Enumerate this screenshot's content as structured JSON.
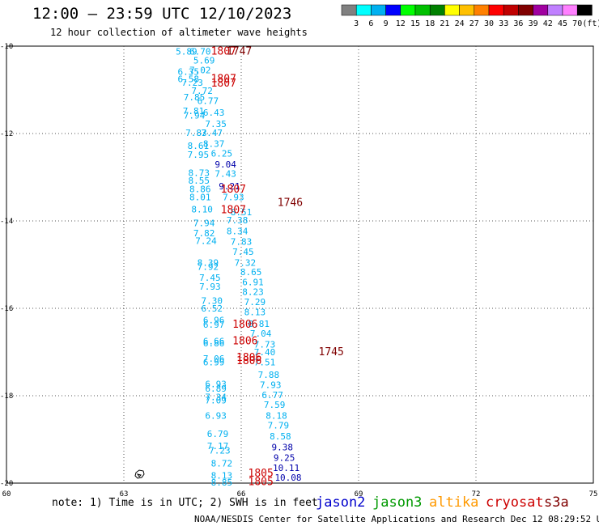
{
  "title": "12:00 — 23:59 UTC 12/10/2023",
  "subtitle": "12 hour collection of altimeter wave heights",
  "scale": {
    "labels": [
      "3",
      "6",
      "9",
      "12",
      "15",
      "18",
      "21",
      "24",
      "27",
      "30",
      "33",
      "36",
      "39",
      "42",
      "45",
      "70",
      "(ft)"
    ],
    "colors": [
      "#808080",
      "#00ffff",
      "#00b0f0",
      "#0000ff",
      "#00ff00",
      "#00c000",
      "#008000",
      "#ffff00",
      "#ffc000",
      "#ff8000",
      "#ff0000",
      "#c00000",
      "#800000",
      "#a000a0",
      "#c080ff",
      "#ff80ff",
      "#000000"
    ]
  },
  "note": "note: 1) Time is in UTC; 2) SWH is in feet",
  "satellites": [
    {
      "name": "jason2",
      "color": "#0000cc"
    },
    {
      "name": "jason3",
      "color": "#009900"
    },
    {
      "name": "altika",
      "color": "#ff9900"
    },
    {
      "name": "cryosat",
      "color": "#cc0000"
    },
    {
      "name": "s3a",
      "color": "#800000"
    }
  ],
  "footer": "NOAA/NESDIS Center for Satellite Applications and Research    Dec 12 08:29:52 UTC 2023",
  "chart_data": {
    "type": "scatter",
    "x_ticks": [
      "60",
      "63",
      "66",
      "69",
      "72",
      "75"
    ],
    "y_ticks": [
      "-10",
      "-12",
      "-14",
      "-16",
      "-18",
      "-20"
    ],
    "xlim": [
      60,
      75
    ],
    "ylim": [
      -20,
      -10
    ],
    "grid": true,
    "points": [
      {
        "x": 64.6,
        "y": -10.12,
        "v": "5.89",
        "c": "#00b0f0"
      },
      {
        "x": 64.95,
        "y": -10.12,
        "v": "6.70",
        "c": "#00b0f0"
      },
      {
        "x": 65.05,
        "y": -10.32,
        "v": "5.69",
        "c": "#00b0f0"
      },
      {
        "x": 64.65,
        "y": -10.58,
        "v": "6.35",
        "c": "#00b0f0"
      },
      {
        "x": 64.95,
        "y": -10.55,
        "v": "7.02",
        "c": "#00b0f0"
      },
      {
        "x": 64.65,
        "y": -10.75,
        "v": "6.58",
        "c": "#00b0f0"
      },
      {
        "x": 64.75,
        "y": -10.83,
        "v": "7.23",
        "c": "#00b0f0"
      },
      {
        "x": 65.0,
        "y": -11.02,
        "v": "7.72",
        "c": "#00b0f0"
      },
      {
        "x": 64.8,
        "y": -11.17,
        "v": "7.85",
        "c": "#00b0f0"
      },
      {
        "x": 65.15,
        "y": -11.25,
        "v": "6.77",
        "c": "#00b0f0"
      },
      {
        "x": 64.78,
        "y": -11.48,
        "v": "7.81",
        "c": "#00b0f0"
      },
      {
        "x": 64.8,
        "y": -11.58,
        "v": "7.94",
        "c": "#00b0f0"
      },
      {
        "x": 65.3,
        "y": -11.52,
        "v": "6.43",
        "c": "#00b0f0"
      },
      {
        "x": 65.35,
        "y": -11.78,
        "v": "7.35",
        "c": "#00b0f0"
      },
      {
        "x": 64.85,
        "y": -11.98,
        "v": "7.83",
        "c": "#00b0f0"
      },
      {
        "x": 65.25,
        "y": -11.98,
        "v": "7.47",
        "c": "#00b0f0"
      },
      {
        "x": 64.9,
        "y": -12.28,
        "v": "8.61",
        "c": "#00b0f0"
      },
      {
        "x": 65.3,
        "y": -12.23,
        "v": "8.37",
        "c": "#00b0f0"
      },
      {
        "x": 64.9,
        "y": -12.48,
        "v": "7.95",
        "c": "#00b0f0"
      },
      {
        "x": 65.5,
        "y": -12.45,
        "v": "6.25",
        "c": "#00b0f0"
      },
      {
        "x": 65.6,
        "y": -12.7,
        "v": "9.04",
        "c": "#0000aa"
      },
      {
        "x": 64.92,
        "y": -12.9,
        "v": "8.73",
        "c": "#00b0f0"
      },
      {
        "x": 65.6,
        "y": -12.92,
        "v": "7.43",
        "c": "#00b0f0"
      },
      {
        "x": 64.92,
        "y": -13.07,
        "v": "8.55",
        "c": "#00b0f0"
      },
      {
        "x": 64.95,
        "y": -13.27,
        "v": "8.86",
        "c": "#00b0f0"
      },
      {
        "x": 65.7,
        "y": -13.2,
        "v": "9.21",
        "c": "#0000aa"
      },
      {
        "x": 64.95,
        "y": -13.45,
        "v": "8.01",
        "c": "#00b0f0"
      },
      {
        "x": 65.8,
        "y": -13.45,
        "v": "7.93",
        "c": "#00b0f0"
      },
      {
        "x": 65.0,
        "y": -13.73,
        "v": "8.10",
        "c": "#00b0f0"
      },
      {
        "x": 66.0,
        "y": -13.8,
        "v": "8.51",
        "c": "#00b0f0"
      },
      {
        "x": 65.9,
        "y": -13.98,
        "v": "7.38",
        "c": "#00b0f0"
      },
      {
        "x": 65.05,
        "y": -14.05,
        "v": "7.94",
        "c": "#00b0f0"
      },
      {
        "x": 65.9,
        "y": -14.23,
        "v": "8.34",
        "c": "#00b0f0"
      },
      {
        "x": 65.05,
        "y": -14.28,
        "v": "7.82",
        "c": "#00b0f0"
      },
      {
        "x": 65.1,
        "y": -14.45,
        "v": "7.24",
        "c": "#00b0f0"
      },
      {
        "x": 66.0,
        "y": -14.47,
        "v": "7.83",
        "c": "#00b0f0"
      },
      {
        "x": 66.05,
        "y": -14.7,
        "v": "7.45",
        "c": "#00b0f0"
      },
      {
        "x": 65.15,
        "y": -14.95,
        "v": "8.39",
        "c": "#00b0f0"
      },
      {
        "x": 66.1,
        "y": -14.95,
        "v": "7.32",
        "c": "#00b0f0"
      },
      {
        "x": 65.15,
        "y": -15.05,
        "v": "7.92",
        "c": "#00b0f0"
      },
      {
        "x": 66.25,
        "y": -15.17,
        "v": "8.65",
        "c": "#00b0f0"
      },
      {
        "x": 65.2,
        "y": -15.3,
        "v": "7.45",
        "c": "#00b0f0"
      },
      {
        "x": 66.3,
        "y": -15.4,
        "v": "6.91",
        "c": "#00b0f0"
      },
      {
        "x": 65.2,
        "y": -15.5,
        "v": "7.93",
        "c": "#00b0f0"
      },
      {
        "x": 66.3,
        "y": -15.62,
        "v": "8.23",
        "c": "#00b0f0"
      },
      {
        "x": 65.25,
        "y": -15.82,
        "v": "7.30",
        "c": "#00b0f0"
      },
      {
        "x": 66.35,
        "y": -15.85,
        "v": "7.29",
        "c": "#00b0f0"
      },
      {
        "x": 65.25,
        "y": -16.0,
        "v": "6.52",
        "c": "#00b0f0"
      },
      {
        "x": 66.35,
        "y": -16.08,
        "v": "8.13",
        "c": "#00b0f0"
      },
      {
        "x": 65.3,
        "y": -16.27,
        "v": "6.96",
        "c": "#00b0f0"
      },
      {
        "x": 65.3,
        "y": -16.37,
        "v": "6.97",
        "c": "#00b0f0"
      },
      {
        "x": 66.45,
        "y": -16.35,
        "v": "8.81",
        "c": "#00b0f0"
      },
      {
        "x": 66.5,
        "y": -16.57,
        "v": "7.04",
        "c": "#00b0f0"
      },
      {
        "x": 65.3,
        "y": -16.75,
        "v": "6.66",
        "c": "#00b0f0"
      },
      {
        "x": 65.3,
        "y": -16.8,
        "v": "6.86",
        "c": "#00b0f0"
      },
      {
        "x": 66.6,
        "y": -16.82,
        "v": "7.73",
        "c": "#00b0f0"
      },
      {
        "x": 66.6,
        "y": -17.0,
        "v": "7.40",
        "c": "#00b0f0"
      },
      {
        "x": 65.3,
        "y": -17.15,
        "v": "7.06",
        "c": "#00b0f0"
      },
      {
        "x": 65.3,
        "y": -17.23,
        "v": "6.99",
        "c": "#00b0f0"
      },
      {
        "x": 66.6,
        "y": -17.23,
        "v": "7.51",
        "c": "#00b0f0"
      },
      {
        "x": 66.7,
        "y": -17.52,
        "v": "7.88",
        "c": "#00b0f0"
      },
      {
        "x": 65.35,
        "y": -17.73,
        "v": "6.93",
        "c": "#00b0f0"
      },
      {
        "x": 66.75,
        "y": -17.75,
        "v": "7.93",
        "c": "#00b0f0"
      },
      {
        "x": 65.35,
        "y": -17.83,
        "v": "6.89",
        "c": "#00b0f0"
      },
      {
        "x": 66.8,
        "y": -17.98,
        "v": "6.77",
        "c": "#00b0f0"
      },
      {
        "x": 65.35,
        "y": -18.03,
        "v": "7.34",
        "c": "#00b0f0"
      },
      {
        "x": 65.35,
        "y": -18.1,
        "v": "7.09",
        "c": "#00b0f0"
      },
      {
        "x": 66.85,
        "y": -18.2,
        "v": "7.59",
        "c": "#00b0f0"
      },
      {
        "x": 65.35,
        "y": -18.45,
        "v": "6.93",
        "c": "#00b0f0"
      },
      {
        "x": 66.9,
        "y": -18.45,
        "v": "8.18",
        "c": "#00b0f0"
      },
      {
        "x": 66.95,
        "y": -18.68,
        "v": "7.79",
        "c": "#00b0f0"
      },
      {
        "x": 65.4,
        "y": -18.87,
        "v": "6.79",
        "c": "#00b0f0"
      },
      {
        "x": 67.0,
        "y": -18.93,
        "v": "8.58",
        "c": "#00b0f0"
      },
      {
        "x": 65.4,
        "y": -19.15,
        "v": "7.17",
        "c": "#00b0f0"
      },
      {
        "x": 67.05,
        "y": -19.18,
        "v": "9.38",
        "c": "#0000aa"
      },
      {
        "x": 65.45,
        "y": -19.25,
        "v": "7.23",
        "c": "#00b0f0"
      },
      {
        "x": 67.1,
        "y": -19.42,
        "v": "9.25",
        "c": "#0000aa"
      },
      {
        "x": 65.5,
        "y": -19.55,
        "v": "8.72",
        "c": "#00b0f0"
      },
      {
        "x": 67.15,
        "y": -19.65,
        "v": "10.11",
        "c": "#0000aa"
      },
      {
        "x": 65.5,
        "y": -19.82,
        "v": "8.13",
        "c": "#00b0f0"
      },
      {
        "x": 67.2,
        "y": -19.87,
        "v": "10.08",
        "c": "#0000aa"
      },
      {
        "x": 65.5,
        "y": -19.98,
        "v": "8.85",
        "c": "#00b0f0"
      }
    ],
    "time_labels": [
      {
        "x": 65.55,
        "y": -10.12,
        "t": "1807",
        "c": "#cc0000"
      },
      {
        "x": 65.95,
        "y": -10.12,
        "t": "1747",
        "c": "#800000"
      },
      {
        "x": 65.55,
        "y": -10.75,
        "t": "1807",
        "c": "#cc0000"
      },
      {
        "x": 65.55,
        "y": -10.85,
        "t": "1807",
        "c": "#cc0000"
      },
      {
        "x": 65.8,
        "y": -13.28,
        "t": "1807",
        "c": "#cc0000"
      },
      {
        "x": 67.25,
        "y": -13.58,
        "t": "1746",
        "c": "#800000"
      },
      {
        "x": 65.8,
        "y": -13.75,
        "t": "1807",
        "c": "#cc0000"
      },
      {
        "x": 66.1,
        "y": -16.37,
        "t": "1806",
        "c": "#cc0000"
      },
      {
        "x": 66.1,
        "y": -16.75,
        "t": "1806",
        "c": "#cc0000"
      },
      {
        "x": 68.3,
        "y": -17.0,
        "t": "1745",
        "c": "#800000"
      },
      {
        "x": 66.2,
        "y": -17.13,
        "t": "1806",
        "c": "#cc0000"
      },
      {
        "x": 66.2,
        "y": -17.2,
        "t": "1806",
        "c": "#cc0000"
      },
      {
        "x": 66.5,
        "y": -19.78,
        "t": "1805",
        "c": "#cc0000"
      },
      {
        "x": 66.5,
        "y": -19.97,
        "t": "1805",
        "c": "#cc0000"
      }
    ]
  }
}
